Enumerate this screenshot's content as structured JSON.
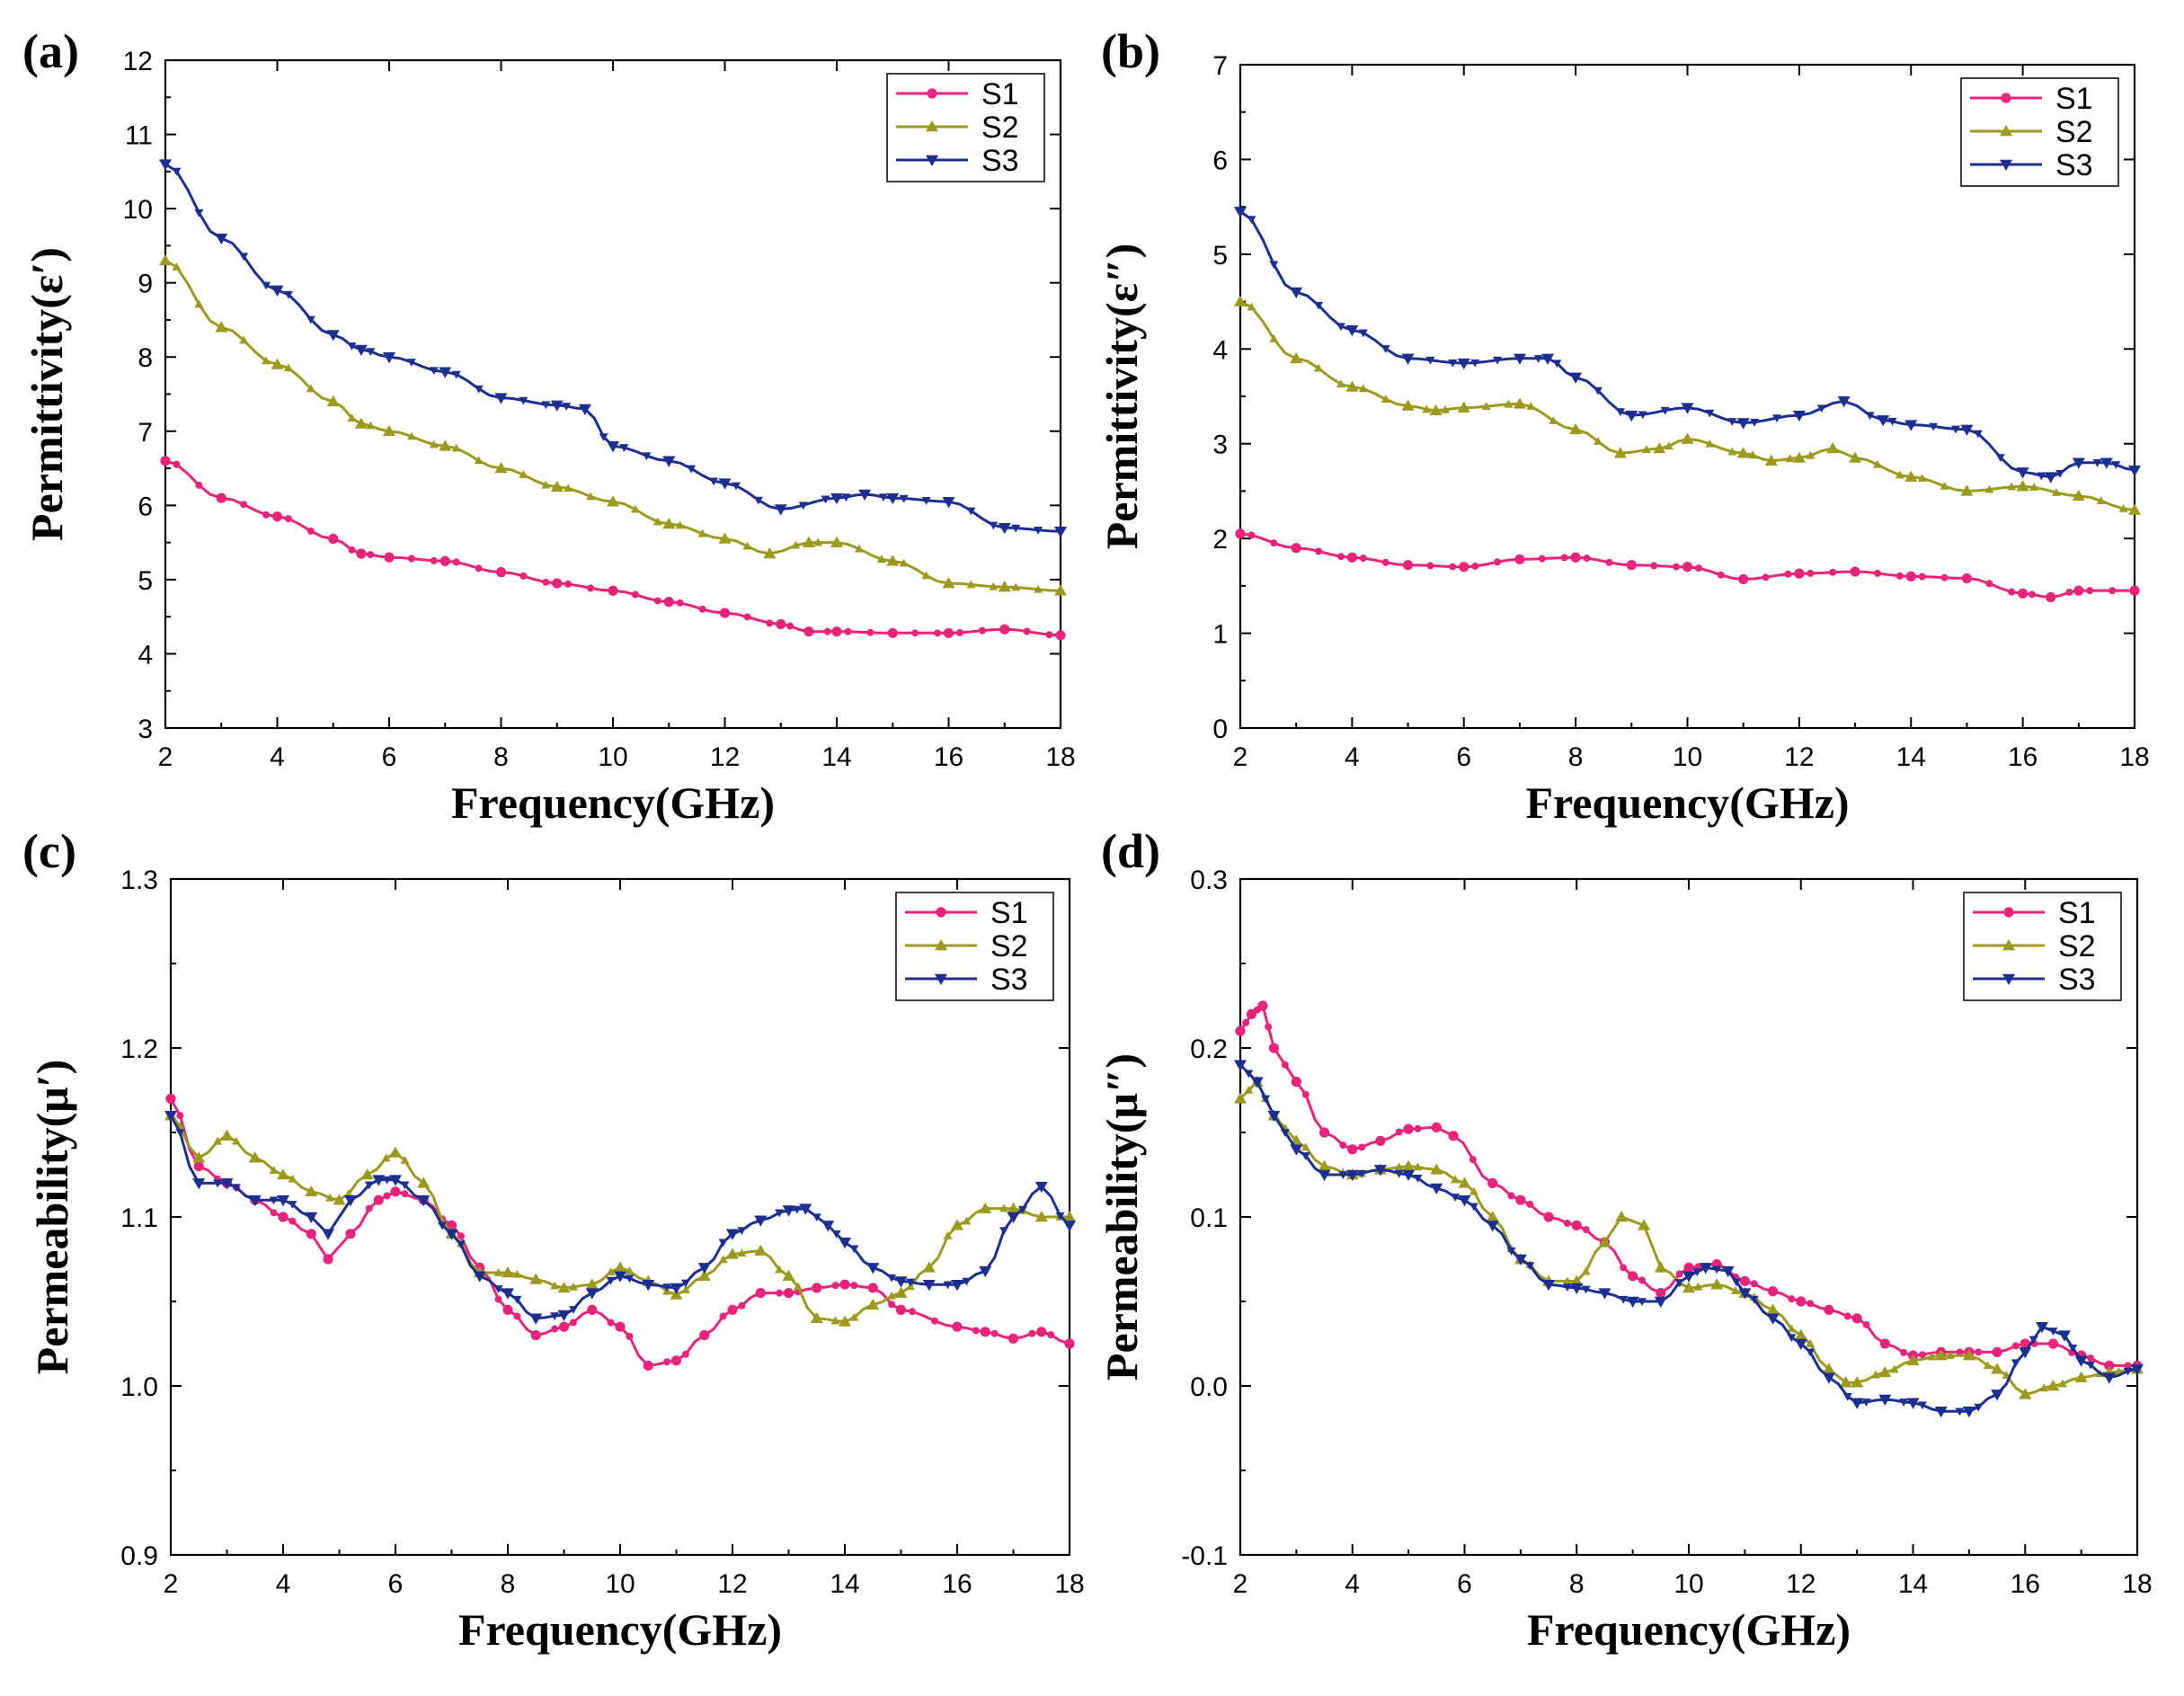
{
  "chart_data": [
    {
      "type": "line",
      "panel_label": "(a)",
      "xlabel": "Frequency(GHz)",
      "ylabel": "Permittivity(ε′)",
      "xlim": [
        2,
        18
      ],
      "ylim": [
        3,
        12
      ],
      "xticks": [
        2,
        4,
        6,
        8,
        10,
        12,
        14,
        16,
        18
      ],
      "yticks": [
        3,
        4,
        5,
        6,
        7,
        8,
        9,
        10,
        11,
        12
      ],
      "tick_decimals": 0,
      "legend_position": "top-right",
      "series": [
        {
          "name": "S1",
          "color": "#e8237a",
          "marker": "circle",
          "x": [
            2,
            3,
            4,
            5,
            5.5,
            6,
            7,
            8,
            9,
            10,
            11,
            12,
            13,
            13.5,
            14,
            15,
            16,
            17,
            18
          ],
          "y": [
            6.6,
            6.1,
            5.85,
            5.55,
            5.35,
            5.3,
            5.25,
            5.1,
            4.95,
            4.85,
            4.7,
            4.55,
            4.4,
            4.3,
            4.3,
            4.28,
            4.28,
            4.33,
            4.25
          ]
        },
        {
          "name": "S2",
          "color": "#9b9a1c",
          "marker": "triangle-up",
          "x": [
            2,
            3,
            4,
            5,
            5.5,
            6,
            7,
            8,
            9,
            10,
            11,
            12,
            12.8,
            13.5,
            14,
            15,
            16,
            17,
            18
          ],
          "y": [
            9.3,
            8.4,
            7.9,
            7.4,
            7.1,
            7.0,
            6.8,
            6.5,
            6.25,
            6.05,
            5.75,
            5.55,
            5.35,
            5.5,
            5.5,
            5.25,
            4.95,
            4.9,
            4.85
          ]
        },
        {
          "name": "S3",
          "color": "#1c2f8f",
          "marker": "triangle-down",
          "x": [
            2,
            3,
            4,
            5,
            5.5,
            6,
            7,
            8,
            9,
            9.5,
            10,
            11,
            12,
            13,
            14,
            14.5,
            15,
            16,
            17,
            18
          ],
          "y": [
            10.6,
            9.6,
            8.9,
            8.3,
            8.1,
            8.0,
            7.8,
            7.45,
            7.35,
            7.3,
            6.8,
            6.6,
            6.3,
            5.95,
            6.1,
            6.15,
            6.1,
            6.05,
            5.7,
            5.65
          ]
        }
      ]
    },
    {
      "type": "line",
      "panel_label": "(b)",
      "xlabel": "Frequency(GHz)",
      "ylabel": "Permittivity(ε″)",
      "xlim": [
        2,
        18
      ],
      "ylim": [
        0,
        7
      ],
      "xticks": [
        2,
        4,
        6,
        8,
        10,
        12,
        14,
        16,
        18
      ],
      "yticks": [
        0,
        1,
        2,
        3,
        4,
        5,
        6,
        7
      ],
      "tick_decimals": 0,
      "legend_position": "top-right",
      "series": [
        {
          "name": "S1",
          "color": "#e8237a",
          "marker": "circle",
          "x": [
            2,
            3,
            4,
            5,
            6,
            7,
            8,
            9,
            10,
            11,
            12,
            13,
            14,
            15,
            16,
            16.5,
            17,
            18
          ],
          "y": [
            2.05,
            1.9,
            1.8,
            1.72,
            1.7,
            1.78,
            1.8,
            1.72,
            1.7,
            1.57,
            1.63,
            1.65,
            1.6,
            1.58,
            1.42,
            1.38,
            1.45,
            1.45
          ]
        },
        {
          "name": "S2",
          "color": "#9b9a1c",
          "marker": "triangle-up",
          "x": [
            2,
            3,
            4,
            5,
            5.5,
            6,
            7,
            8,
            8.8,
            9.5,
            10,
            11,
            11.5,
            12,
            12.6,
            13,
            14,
            15,
            16,
            17,
            18
          ],
          "y": [
            4.5,
            3.9,
            3.6,
            3.4,
            3.35,
            3.38,
            3.42,
            3.15,
            2.9,
            2.95,
            3.05,
            2.9,
            2.82,
            2.85,
            2.95,
            2.85,
            2.65,
            2.5,
            2.55,
            2.45,
            2.3
          ]
        },
        {
          "name": "S3",
          "color": "#1c2f8f",
          "marker": "triangle-down",
          "x": [
            2,
            3,
            4,
            5,
            6,
            7,
            7.5,
            8,
            9,
            10,
            11,
            12,
            12.8,
            13.5,
            14,
            15,
            16,
            16.5,
            17,
            17.5,
            18
          ],
          "y": [
            5.45,
            4.6,
            4.2,
            3.9,
            3.85,
            3.9,
            3.9,
            3.7,
            3.3,
            3.38,
            3.22,
            3.3,
            3.45,
            3.25,
            3.2,
            3.15,
            2.7,
            2.65,
            2.8,
            2.8,
            2.72
          ]
        }
      ]
    },
    {
      "type": "line",
      "panel_label": "(c)",
      "xlabel": "Frequency(GHz)",
      "ylabel": "Permeability(μ′)",
      "xlim": [
        2,
        18
      ],
      "ylim": [
        0.9,
        1.3
      ],
      "xticks": [
        2,
        4,
        6,
        8,
        10,
        12,
        14,
        16,
        18
      ],
      "yticks": [
        0.9,
        1.0,
        1.1,
        1.2,
        1.3
      ],
      "tick_decimals": 1,
      "legend_position": "top-right",
      "series": [
        {
          "name": "S1",
          "color": "#e8237a",
          "marker": "circle",
          "x": [
            2,
            2.5,
            3,
            3.5,
            4,
            4.5,
            4.8,
            5.2,
            5.7,
            6,
            6.5,
            7,
            7.5,
            8,
            8.5,
            9,
            9.5,
            10,
            10.5,
            11,
            11.5,
            12,
            12.5,
            13,
            13.5,
            14,
            14.5,
            15,
            16,
            16.5,
            17,
            17.5,
            18
          ],
          "y": [
            1.17,
            1.13,
            1.12,
            1.11,
            1.1,
            1.09,
            1.075,
            1.09,
            1.11,
            1.115,
            1.11,
            1.095,
            1.07,
            1.045,
            1.03,
            1.035,
            1.045,
            1.035,
            1.012,
            1.015,
            1.03,
            1.045,
            1.055,
            1.055,
            1.058,
            1.06,
            1.058,
            1.045,
            1.035,
            1.032,
            1.028,
            1.032,
            1.025
          ]
        },
        {
          "name": "S2",
          "color": "#9b9a1c",
          "marker": "triangle-up",
          "x": [
            2,
            2.5,
            3,
            3.5,
            4,
            4.5,
            5,
            5.5,
            6,
            6.5,
            7,
            7.5,
            8,
            8.5,
            9,
            9.5,
            10,
            10.5,
            11,
            11.5,
            12,
            12.5,
            13,
            13.5,
            14,
            14.5,
            15,
            15.5,
            16,
            16.5,
            17,
            17.5,
            18
          ],
          "y": [
            1.16,
            1.135,
            1.148,
            1.135,
            1.125,
            1.115,
            1.11,
            1.125,
            1.138,
            1.12,
            1.09,
            1.067,
            1.067,
            1.063,
            1.058,
            1.06,
            1.07,
            1.062,
            1.054,
            1.065,
            1.078,
            1.08,
            1.065,
            1.04,
            1.038,
            1.048,
            1.055,
            1.07,
            1.095,
            1.105,
            1.105,
            1.1,
            1.1
          ]
        },
        {
          "name": "S3",
          "color": "#1c2f8f",
          "marker": "triangle-down",
          "x": [
            2,
            2.5,
            3,
            3.5,
            4,
            4.5,
            4.8,
            5.2,
            5.7,
            6,
            6.5,
            7,
            7.5,
            8,
            8.5,
            9,
            9.5,
            10,
            10.5,
            11,
            11.5,
            12,
            12.5,
            13,
            13.3,
            13.7,
            14,
            14.5,
            15,
            15.5,
            16,
            16.5,
            17,
            17.5,
            18
          ],
          "y": [
            1.16,
            1.12,
            1.12,
            1.11,
            1.11,
            1.1,
            1.09,
            1.11,
            1.122,
            1.122,
            1.11,
            1.09,
            1.065,
            1.055,
            1.04,
            1.042,
            1.055,
            1.065,
            1.06,
            1.058,
            1.07,
            1.09,
            1.098,
            1.104,
            1.105,
            1.095,
            1.085,
            1.07,
            1.062,
            1.06,
            1.06,
            1.068,
            1.1,
            1.118,
            1.095
          ]
        }
      ]
    },
    {
      "type": "line",
      "panel_label": "(d)",
      "xlabel": "Frequency(GHz)",
      "ylabel": "Permeability(μ″)",
      "xlim": [
        2,
        18
      ],
      "ylim": [
        -0.1,
        0.3
      ],
      "xticks": [
        2,
        4,
        6,
        8,
        10,
        12,
        14,
        16,
        18
      ],
      "yticks": [
        -0.1,
        0.0,
        0.1,
        0.2,
        0.3
      ],
      "tick_decimals": 1,
      "legend_position": "top-right",
      "series": [
        {
          "name": "S1",
          "color": "#e8237a",
          "marker": "circle",
          "x": [
            2,
            2.2,
            2.4,
            2.6,
            3,
            3.5,
            4,
            4.5,
            5,
            5.5,
            5.8,
            6.5,
            7,
            7.5,
            8,
            8.5,
            9,
            9.5,
            10,
            10.5,
            11,
            11.5,
            12,
            12.5,
            13,
            13.5,
            14,
            14.5,
            15,
            15.5,
            16,
            16.5,
            17,
            17.5,
            18
          ],
          "y": [
            0.21,
            0.22,
            0.225,
            0.2,
            0.18,
            0.15,
            0.14,
            0.145,
            0.152,
            0.153,
            0.148,
            0.12,
            0.11,
            0.1,
            0.095,
            0.085,
            0.065,
            0.055,
            0.07,
            0.072,
            0.062,
            0.056,
            0.05,
            0.045,
            0.04,
            0.025,
            0.018,
            0.02,
            0.02,
            0.02,
            0.025,
            0.025,
            0.018,
            0.012,
            0.012
          ]
        },
        {
          "name": "S2",
          "color": "#9b9a1c",
          "marker": "triangle-up",
          "x": [
            2,
            2.3,
            2.6,
            3,
            3.5,
            4,
            4.5,
            5,
            5.5,
            6,
            6.5,
            7,
            7.5,
            8,
            8.5,
            8.8,
            9.2,
            9.5,
            10,
            10.5,
            11,
            11.5,
            12,
            12.5,
            12.8,
            13,
            13.5,
            14,
            14.5,
            15,
            15.5,
            16,
            16.5,
            17,
            17.5,
            18
          ],
          "y": [
            0.17,
            0.18,
            0.16,
            0.145,
            0.13,
            0.125,
            0.128,
            0.13,
            0.128,
            0.12,
            0.1,
            0.075,
            0.062,
            0.062,
            0.085,
            0.1,
            0.095,
            0.07,
            0.058,
            0.06,
            0.055,
            0.045,
            0.03,
            0.01,
            0.002,
            0.002,
            0.008,
            0.015,
            0.018,
            0.018,
            0.01,
            -0.005,
            0.0,
            0.005,
            0.008,
            0.01
          ]
        },
        {
          "name": "S3",
          "color": "#1c2f8f",
          "marker": "triangle-down",
          "x": [
            2,
            2.3,
            2.6,
            3,
            3.5,
            4,
            4.5,
            5,
            5.5,
            6,
            6.5,
            7,
            7.5,
            8,
            8.5,
            9,
            9.5,
            10,
            10.3,
            10.7,
            11,
            11.5,
            12,
            12.5,
            13,
            13.5,
            14,
            14.5,
            15,
            15.5,
            16,
            16.3,
            16.7,
            17,
            17.5,
            18
          ],
          "y": [
            0.19,
            0.18,
            0.16,
            0.14,
            0.125,
            0.125,
            0.128,
            0.125,
            0.117,
            0.11,
            0.095,
            0.075,
            0.06,
            0.058,
            0.055,
            0.05,
            0.05,
            0.065,
            0.07,
            0.068,
            0.055,
            0.04,
            0.025,
            0.005,
            -0.01,
            -0.008,
            -0.01,
            -0.015,
            -0.015,
            -0.005,
            0.02,
            0.035,
            0.03,
            0.015,
            0.005,
            0.01
          ]
        }
      ]
    }
  ]
}
